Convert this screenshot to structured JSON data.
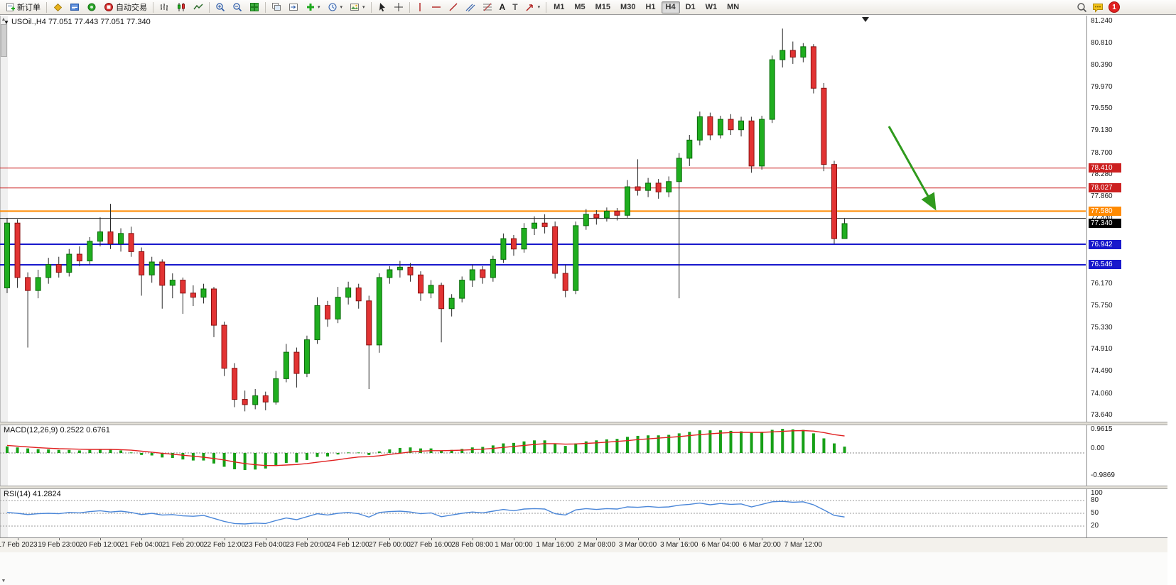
{
  "toolbar": {
    "new_order_label": "新订单",
    "auto_trading_label": "自动交易",
    "text_tool_label": "A",
    "label_tool_label": "T",
    "timeframes": [
      "M1",
      "M5",
      "M15",
      "M30",
      "H1",
      "H4",
      "D1",
      "W1",
      "MN"
    ],
    "active_timeframe": "H4",
    "notification_count": "1"
  },
  "chart": {
    "ohlc_line": "USOil.,H4 77.051 77.443 77.051 77.340",
    "current_price": "77.340",
    "price_ticks": [
      "81.240",
      "80.810",
      "80.390",
      "79.970",
      "79.550",
      "79.130",
      "78.700",
      "78.280",
      "77.860",
      "77.440",
      "76.170",
      "75.750",
      "75.330",
      "74.910",
      "74.490",
      "74.060",
      "73.640"
    ],
    "time_labels": [
      "17 Feb 2023",
      "19 Feb 23:00",
      "20 Feb 12:00",
      "21 Feb 04:00",
      "21 Feb 20:00",
      "22 Feb 12:00",
      "23 Feb 04:00",
      "23 Feb 20:00",
      "24 Feb 12:00",
      "27 Feb 00:00",
      "27 Feb 16:00",
      "28 Feb 08:00",
      "1 Mar 00:00",
      "1 Mar 16:00",
      "2 Mar 08:00",
      "3 Mar 00:00",
      "3 Mar 16:00",
      "6 Mar 04:00",
      "6 Mar 20:00",
      "7 Mar 12:00"
    ],
    "hlines": [
      {
        "price": 78.41,
        "label": "78.410",
        "color": "#cc2020",
        "width": 1
      },
      {
        "price": 78.027,
        "label": "78.027",
        "color": "#cc2020",
        "width": 1
      },
      {
        "price": 77.58,
        "label": "77.580",
        "color": "#ff8a00",
        "width": 2
      },
      {
        "price": 77.44,
        "label": null,
        "color": "#262626",
        "width": 1
      },
      {
        "price": 76.942,
        "label": "76.942",
        "color": "#1818cc",
        "width": 2
      },
      {
        "price": 76.546,
        "label": "76.546",
        "color": "#1818cc",
        "width": 2
      }
    ],
    "chart_data": {
      "type": "candlestick",
      "symbol": "USOil",
      "timeframe": "H4",
      "ylim": [
        73.52,
        81.35
      ],
      "ohlc": [
        [
          76.1,
          77.45,
          76.0,
          77.35
        ],
        [
          77.35,
          77.42,
          76.1,
          76.3
        ],
        [
          76.3,
          76.4,
          74.95,
          76.05
        ],
        [
          76.05,
          76.45,
          75.9,
          76.3
        ],
        [
          76.3,
          76.68,
          76.18,
          76.55
        ],
        [
          76.55,
          76.7,
          76.3,
          76.4
        ],
        [
          76.4,
          76.85,
          76.32,
          76.75
        ],
        [
          76.75,
          76.9,
          76.52,
          76.62
        ],
        [
          76.62,
          77.08,
          76.55,
          77.0
        ],
        [
          77.0,
          77.46,
          76.9,
          77.18
        ],
        [
          77.18,
          77.72,
          76.85,
          76.95
        ],
        [
          76.95,
          77.25,
          76.8,
          77.15
        ],
        [
          77.15,
          77.28,
          76.7,
          76.8
        ],
        [
          76.8,
          76.88,
          75.95,
          76.35
        ],
        [
          76.35,
          76.7,
          76.2,
          76.6
        ],
        [
          76.6,
          76.65,
          75.7,
          76.15
        ],
        [
          76.15,
          76.38,
          75.9,
          76.25
        ],
        [
          76.25,
          76.3,
          75.6,
          76.0
        ],
        [
          76.0,
          76.15,
          75.75,
          75.92
        ],
        [
          75.92,
          76.18,
          75.8,
          76.08
        ],
        [
          76.08,
          76.12,
          75.15,
          75.38
        ],
        [
          75.38,
          75.45,
          74.4,
          74.55
        ],
        [
          74.55,
          74.65,
          73.8,
          73.95
        ],
        [
          73.95,
          74.12,
          73.72,
          73.85
        ],
        [
          73.85,
          74.15,
          73.76,
          74.02
        ],
        [
          74.02,
          74.1,
          73.74,
          73.9
        ],
        [
          73.9,
          74.5,
          73.85,
          74.35
        ],
        [
          74.35,
          75.02,
          74.28,
          74.86
        ],
        [
          74.86,
          74.95,
          74.18,
          74.45
        ],
        [
          74.45,
          75.18,
          74.38,
          75.1
        ],
        [
          75.1,
          75.92,
          75.02,
          75.76
        ],
        [
          75.76,
          75.85,
          75.35,
          75.5
        ],
        [
          75.5,
          76.12,
          75.42,
          75.92
        ],
        [
          75.92,
          76.22,
          75.78,
          76.1
        ],
        [
          76.1,
          76.18,
          75.7,
          75.85
        ],
        [
          75.85,
          75.95,
          74.15,
          75.0
        ],
        [
          75.0,
          76.38,
          74.85,
          76.3
        ],
        [
          76.3,
          76.52,
          76.18,
          76.45
        ],
        [
          76.45,
          76.62,
          76.3,
          76.5
        ],
        [
          76.5,
          76.58,
          76.22,
          76.35
        ],
        [
          76.35,
          76.42,
          75.85,
          76.0
        ],
        [
          76.0,
          76.25,
          75.9,
          76.15
        ],
        [
          76.15,
          76.2,
          75.05,
          75.7
        ],
        [
          75.7,
          75.98,
          75.55,
          75.9
        ],
        [
          75.9,
          76.32,
          75.82,
          76.25
        ],
        [
          76.25,
          76.55,
          76.12,
          76.45
        ],
        [
          76.45,
          76.52,
          76.18,
          76.3
        ],
        [
          76.3,
          76.72,
          76.22,
          76.65
        ],
        [
          76.65,
          77.15,
          76.58,
          77.05
        ],
        [
          77.05,
          77.12,
          76.72,
          76.85
        ],
        [
          76.85,
          77.35,
          76.78,
          77.25
        ],
        [
          77.25,
          77.48,
          77.12,
          77.35
        ],
        [
          77.35,
          77.52,
          77.15,
          77.28
        ],
        [
          77.28,
          77.38,
          76.28,
          76.38
        ],
        [
          76.38,
          76.55,
          75.92,
          76.05
        ],
        [
          76.05,
          77.38,
          75.98,
          77.3
        ],
        [
          77.3,
          77.62,
          77.22,
          77.52
        ],
        [
          77.52,
          77.6,
          77.32,
          77.45
        ],
        [
          77.45,
          77.65,
          77.38,
          77.58
        ],
        [
          77.58,
          77.64,
          77.4,
          77.5
        ],
        [
          77.5,
          78.18,
          77.45,
          78.05
        ],
        [
          78.05,
          78.58,
          77.88,
          77.98
        ],
        [
          77.98,
          78.22,
          77.85,
          78.12
        ],
        [
          78.12,
          78.2,
          77.82,
          77.95
        ],
        [
          77.95,
          78.25,
          77.85,
          78.15
        ],
        [
          78.15,
          78.7,
          75.9,
          78.6
        ],
        [
          78.6,
          79.05,
          78.45,
          78.95
        ],
        [
          78.95,
          79.5,
          78.85,
          79.4
        ],
        [
          79.4,
          79.48,
          78.95,
          79.05
        ],
        [
          79.05,
          79.42,
          78.98,
          79.35
        ],
        [
          79.35,
          79.45,
          79.05,
          79.15
        ],
        [
          79.15,
          79.4,
          79.02,
          79.32
        ],
        [
          79.32,
          79.4,
          78.32,
          78.45
        ],
        [
          78.45,
          79.42,
          78.38,
          79.35
        ],
        [
          79.35,
          80.58,
          79.28,
          80.5
        ],
        [
          80.5,
          81.1,
          80.35,
          80.68
        ],
        [
          80.68,
          80.85,
          80.42,
          80.55
        ],
        [
          80.55,
          80.82,
          80.45,
          80.75
        ],
        [
          80.75,
          80.8,
          79.85,
          79.95
        ],
        [
          79.95,
          80.05,
          78.35,
          78.48
        ],
        [
          78.48,
          78.55,
          76.95,
          77.05
        ],
        [
          77.051,
          77.443,
          77.051,
          77.34
        ]
      ]
    }
  },
  "macd": {
    "label": "MACD(12,26,9) 0.2522 0.6761",
    "axis_ticks": [
      "0.9615",
      "0.00",
      "-0.9869"
    ],
    "chart_data": {
      "type": "bar",
      "histogram": [
        0.26,
        0.22,
        0.18,
        0.15,
        0.14,
        0.12,
        0.12,
        0.1,
        0.12,
        0.15,
        0.13,
        0.1,
        0.02,
        -0.08,
        -0.1,
        -0.18,
        -0.2,
        -0.26,
        -0.3,
        -0.3,
        -0.42,
        -0.55,
        -0.65,
        -0.68,
        -0.66,
        -0.62,
        -0.52,
        -0.4,
        -0.38,
        -0.28,
        -0.16,
        -0.14,
        -0.06,
        0.02,
        0.02,
        -0.08,
        0.06,
        0.14,
        0.2,
        0.22,
        0.18,
        0.18,
        0.1,
        0.12,
        0.16,
        0.22,
        0.24,
        0.3,
        0.38,
        0.4,
        0.46,
        0.5,
        0.5,
        0.38,
        0.28,
        0.38,
        0.46,
        0.5,
        0.54,
        0.56,
        0.64,
        0.68,
        0.7,
        0.7,
        0.72,
        0.78,
        0.84,
        0.9,
        0.9,
        0.9,
        0.88,
        0.86,
        0.8,
        0.84,
        0.92,
        0.96,
        0.94,
        0.92,
        0.78,
        0.58,
        0.38,
        0.2522
      ],
      "signal": [
        0.3,
        0.27,
        0.24,
        0.21,
        0.19,
        0.17,
        0.16,
        0.15,
        0.14,
        0.14,
        0.14,
        0.13,
        0.11,
        0.07,
        0.03,
        -0.01,
        -0.05,
        -0.09,
        -0.13,
        -0.17,
        -0.22,
        -0.28,
        -0.36,
        -0.42,
        -0.47,
        -0.5,
        -0.5,
        -0.48,
        -0.46,
        -0.42,
        -0.37,
        -0.32,
        -0.27,
        -0.21,
        -0.16,
        -0.15,
        -0.11,
        -0.06,
        -0.01,
        0.04,
        0.07,
        0.09,
        0.09,
        0.1,
        0.11,
        0.13,
        0.15,
        0.18,
        0.22,
        0.26,
        0.3,
        0.34,
        0.37,
        0.37,
        0.35,
        0.36,
        0.38,
        0.4,
        0.43,
        0.46,
        0.49,
        0.53,
        0.56,
        0.59,
        0.62,
        0.65,
        0.69,
        0.73,
        0.76,
        0.79,
        0.81,
        0.82,
        0.82,
        0.82,
        0.84,
        0.86,
        0.88,
        0.89,
        0.87,
        0.81,
        0.73,
        0.6761
      ],
      "ylim": [
        -0.9869,
        0.9615
      ]
    }
  },
  "rsi": {
    "label": "RSI(14) 41.2824",
    "axis_ticks": [
      "100",
      "80",
      "50",
      "20"
    ],
    "levels": [
      80,
      50,
      20
    ],
    "chart_data": {
      "type": "line",
      "values": [
        52,
        50,
        47,
        49,
        50,
        49,
        52,
        51,
        54,
        56,
        53,
        55,
        52,
        47,
        50,
        46,
        47,
        44,
        43,
        45,
        38,
        31,
        26,
        25,
        27,
        26,
        33,
        39,
        35,
        42,
        49,
        46,
        50,
        52,
        49,
        41,
        52,
        54,
        55,
        53,
        49,
        51,
        42,
        46,
        50,
        53,
        51,
        55,
        59,
        56,
        60,
        61,
        60,
        49,
        46,
        58,
        61,
        59,
        61,
        60,
        65,
        64,
        66,
        64,
        65,
        69,
        71,
        74,
        70,
        73,
        71,
        72,
        65,
        71,
        77,
        78,
        76,
        77,
        70,
        58,
        45,
        41.2824
      ],
      "ylim": [
        0,
        100
      ]
    }
  },
  "annotations": {
    "trend_arrow": {
      "color": "#2f9a1d"
    }
  },
  "colors": {
    "bull": "#1fae1f",
    "bull_border": "#0a6a0a",
    "bear": "#e23333",
    "bear_border": "#8a1111",
    "wick": "#2a2a2a",
    "macd_hist": "#17a017",
    "macd_signal": "#e02020",
    "rsi_line": "#4a86d8",
    "current_price_bg": "#000000"
  }
}
